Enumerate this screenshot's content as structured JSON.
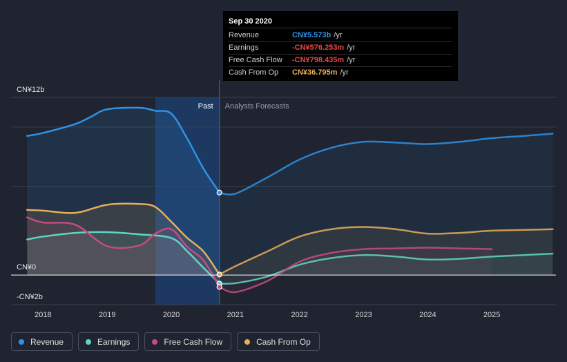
{
  "tooltip": {
    "date": "Sep 30 2020",
    "rows": [
      {
        "label": "Revenue",
        "value": "CN¥5.573b",
        "unit": "/yr",
        "color": "#2e93e6"
      },
      {
        "label": "Earnings",
        "value": "-CN¥576.253m",
        "unit": "/yr",
        "color": "#e8474a"
      },
      {
        "label": "Free Cash Flow",
        "value": "-CN¥798.435m",
        "unit": "/yr",
        "color": "#e8474a"
      },
      {
        "label": "Cash From Op",
        "value": "CN¥36.795m",
        "unit": "/yr",
        "color": "#e8ae5c"
      }
    ]
  },
  "legend": [
    {
      "label": "Revenue",
      "color": "#2e93e6"
    },
    {
      "label": "Earnings",
      "color": "#5fd6c4"
    },
    {
      "label": "Free Cash Flow",
      "color": "#c44d7e"
    },
    {
      "label": "Cash From Op",
      "color": "#e8ae5c"
    }
  ],
  "chart_data": {
    "type": "line",
    "y_unit": "CN¥ b",
    "ylim": [
      -2,
      12
    ],
    "y_tick_labels": [
      {
        "value": 12,
        "label": "CN¥12b"
      },
      {
        "value": 0,
        "label": "CN¥0"
      },
      {
        "value": -2,
        "label": "-CN¥2b"
      }
    ],
    "x_range": [
      2017.5,
      2026.0
    ],
    "x_ticks": [
      {
        "value": 2018,
        "label": "2018"
      },
      {
        "value": 2019,
        "label": "2019"
      },
      {
        "value": 2020,
        "label": "2020"
      },
      {
        "value": 2021,
        "label": "2021"
      },
      {
        "value": 2022,
        "label": "2022"
      },
      {
        "value": 2023,
        "label": "2023"
      },
      {
        "value": 2024,
        "label": "2024"
      },
      {
        "value": 2025,
        "label": "2025"
      }
    ],
    "past_label": "Past",
    "forecast_label": "Analysts Forecasts",
    "divider_x": 2020.75,
    "highlight_start_x": 2019.75,
    "series": [
      {
        "name": "Revenue",
        "color": "#2e93e6",
        "past": [
          [
            2017.75,
            9.4
          ],
          [
            2018.0,
            9.6
          ],
          [
            2018.5,
            10.2
          ],
          [
            2018.75,
            10.7
          ],
          [
            2019.0,
            11.2
          ],
          [
            2019.5,
            11.3
          ],
          [
            2019.75,
            11.1
          ],
          [
            2020.0,
            10.9
          ],
          [
            2020.25,
            9.2
          ],
          [
            2020.5,
            7.2
          ],
          [
            2020.75,
            5.573
          ]
        ],
        "forecast": [
          [
            2020.75,
            5.573
          ],
          [
            2021.0,
            5.5
          ],
          [
            2021.5,
            6.6
          ],
          [
            2022.0,
            7.8
          ],
          [
            2022.5,
            8.6
          ],
          [
            2023.0,
            9.0
          ],
          [
            2023.5,
            8.95
          ],
          [
            2024.0,
            8.85
          ],
          [
            2024.5,
            9.0
          ],
          [
            2025.0,
            9.25
          ],
          [
            2025.5,
            9.4
          ],
          [
            2025.95,
            9.55
          ]
        ]
      },
      {
        "name": "Earnings",
        "color": "#5fd6c4",
        "past": [
          [
            2017.75,
            2.4
          ],
          [
            2018.0,
            2.6
          ],
          [
            2018.5,
            2.85
          ],
          [
            2019.0,
            2.9
          ],
          [
            2019.5,
            2.75
          ],
          [
            2020.0,
            2.5
          ],
          [
            2020.25,
            1.6
          ],
          [
            2020.5,
            0.5
          ],
          [
            2020.75,
            -0.576
          ]
        ],
        "forecast": [
          [
            2020.75,
            -0.576
          ],
          [
            2021.0,
            -0.55
          ],
          [
            2021.5,
            -0.1
          ],
          [
            2022.0,
            0.7
          ],
          [
            2022.5,
            1.15
          ],
          [
            2023.0,
            1.35
          ],
          [
            2023.5,
            1.25
          ],
          [
            2024.0,
            1.05
          ],
          [
            2024.5,
            1.1
          ],
          [
            2025.0,
            1.25
          ],
          [
            2025.5,
            1.35
          ],
          [
            2025.95,
            1.45
          ]
        ]
      },
      {
        "name": "Free Cash Flow",
        "color": "#c44d7e",
        "past": [
          [
            2017.75,
            3.9
          ],
          [
            2018.0,
            3.55
          ],
          [
            2018.5,
            3.4
          ],
          [
            2019.0,
            1.95
          ],
          [
            2019.5,
            2.0
          ],
          [
            2019.75,
            2.8
          ],
          [
            2020.0,
            3.1
          ],
          [
            2020.25,
            1.9
          ],
          [
            2020.5,
            1.0
          ],
          [
            2020.75,
            -0.798
          ]
        ],
        "forecast": [
          [
            2020.75,
            -0.798
          ],
          [
            2021.0,
            -1.15
          ],
          [
            2021.5,
            -0.4
          ],
          [
            2022.0,
            0.9
          ],
          [
            2022.5,
            1.5
          ],
          [
            2023.0,
            1.75
          ],
          [
            2023.5,
            1.8
          ],
          [
            2024.0,
            1.85
          ],
          [
            2024.5,
            1.8
          ],
          [
            2025.0,
            1.75
          ]
        ]
      },
      {
        "name": "Cash From Op",
        "color": "#e8ae5c",
        "past": [
          [
            2017.75,
            4.4
          ],
          [
            2018.0,
            4.35
          ],
          [
            2018.5,
            4.2
          ],
          [
            2019.0,
            4.75
          ],
          [
            2019.5,
            4.8
          ],
          [
            2019.75,
            4.6
          ],
          [
            2020.0,
            3.6
          ],
          [
            2020.25,
            2.5
          ],
          [
            2020.5,
            1.6
          ],
          [
            2020.75,
            0.037
          ]
        ],
        "forecast": [
          [
            2020.75,
            0.037
          ],
          [
            2021.0,
            0.6
          ],
          [
            2021.5,
            1.6
          ],
          [
            2022.0,
            2.6
          ],
          [
            2022.5,
            3.1
          ],
          [
            2023.0,
            3.25
          ],
          [
            2023.5,
            3.1
          ],
          [
            2024.0,
            2.8
          ],
          [
            2024.5,
            2.85
          ],
          [
            2025.0,
            3.0
          ],
          [
            2025.5,
            3.05
          ],
          [
            2025.95,
            3.1
          ]
        ]
      }
    ]
  }
}
